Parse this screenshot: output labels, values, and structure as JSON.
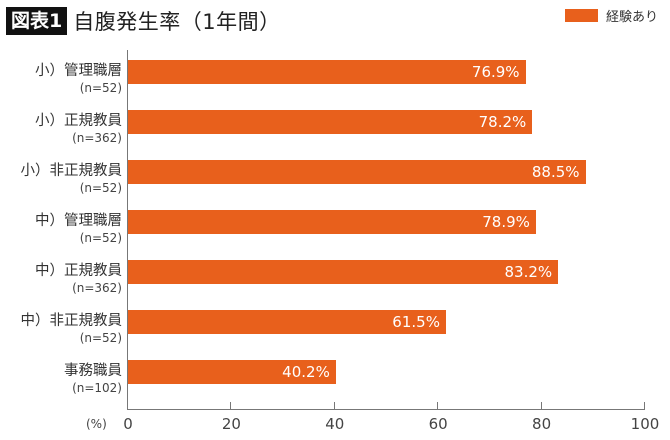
{
  "header": {
    "figure_badge": "図表1",
    "title": "自腹発生率（1年間）"
  },
  "legend": {
    "items": [
      {
        "label": "経験あり",
        "color": "#E8601C"
      }
    ]
  },
  "axis": {
    "unit": "(%)",
    "ticks": [
      "0",
      "20",
      "40",
      "60",
      "80",
      "100"
    ]
  },
  "rows": [
    {
      "name": "小）管理職層",
      "n": "(n=52)",
      "value_label": "76.9%"
    },
    {
      "name": "小）正規教員",
      "n": "(n=362)",
      "value_label": "78.2%"
    },
    {
      "name": "小）非正規教員",
      "n": "(n=52)",
      "value_label": "88.5%"
    },
    {
      "name": "中）管理職層",
      "n": "(n=52)",
      "value_label": "78.9%"
    },
    {
      "name": "中）正規教員",
      "n": "(n=362)",
      "value_label": "83.2%"
    },
    {
      "name": "中）非正規教員",
      "n": "(n=52)",
      "value_label": "61.5%"
    },
    {
      "name": "事務職員",
      "n": "(n=102)",
      "value_label": "40.2%"
    }
  ],
  "chart_data": {
    "type": "bar",
    "orientation": "horizontal",
    "title": "図表1 自腹発生率（1年間）",
    "categories": [
      "小）管理職層 (n=52)",
      "小）正規教員 (n=362)",
      "小）非正規教員 (n=52)",
      "中）管理職層 (n=52)",
      "中）正規教員 (n=362)",
      "中）非正規教員 (n=52)",
      "事務職員 (n=102)"
    ],
    "series": [
      {
        "name": "経験あり",
        "color": "#E8601C",
        "values": [
          76.9,
          78.2,
          88.5,
          78.9,
          83.2,
          61.5,
          40.2
        ]
      }
    ],
    "xlabel": "(%)",
    "ylabel": "",
    "xlim": [
      0,
      100
    ],
    "xticks": [
      0,
      20,
      40,
      60,
      80,
      100
    ],
    "grid": false,
    "legend_position": "top-right",
    "data_labels": true
  }
}
